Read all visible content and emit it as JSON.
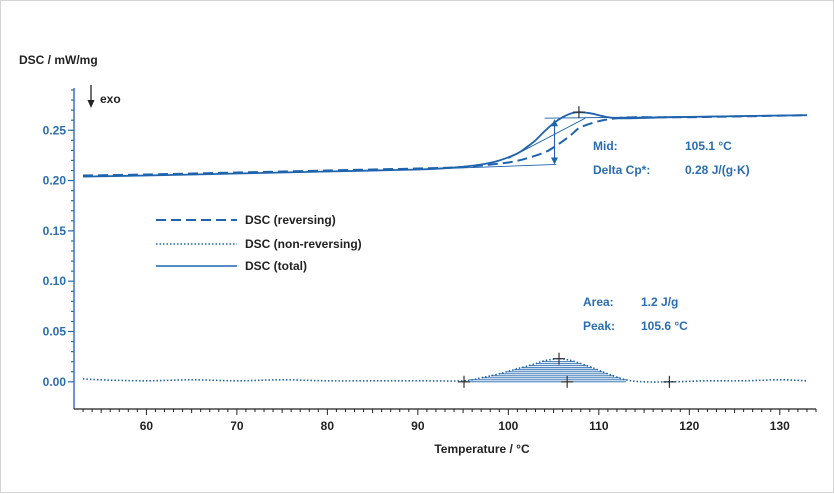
{
  "chart_data": {
    "type": "line",
    "ylabel": "DSC / mW/mg",
    "xlabel": "Temperature / °C",
    "exo_label": "exo",
    "xlim": [
      52,
      134
    ],
    "ylim": [
      -0.027,
      0.292
    ],
    "x_ticks": [
      60,
      70,
      80,
      90,
      100,
      110,
      120,
      130
    ],
    "y_ticks": [
      0.0,
      0.05,
      0.1,
      0.15,
      0.2,
      0.25
    ],
    "y_tick_labels": [
      "0.00",
      "0.05",
      "0.10",
      "0.15",
      "0.20",
      "0.25"
    ],
    "x_tick_labels": [
      "60",
      "70",
      "80",
      "90",
      "100",
      "110",
      "120",
      "130"
    ],
    "series": [
      {
        "name": "DSC (reversing)",
        "style": "dashed",
        "x": [
          53,
          60,
          70,
          80,
          90,
          94,
          97,
          100,
          102,
          104,
          105,
          106,
          107,
          108,
          110,
          112,
          114,
          120,
          133
        ],
        "y": [
          0.205,
          0.206,
          0.208,
          0.21,
          0.212,
          0.213,
          0.215,
          0.218,
          0.222,
          0.228,
          0.233,
          0.239,
          0.246,
          0.253,
          0.259,
          0.262,
          0.263,
          0.263,
          0.265
        ]
      },
      {
        "name": "DSC (non-reversing)",
        "style": "dotted",
        "x": [
          53,
          55,
          60,
          65,
          70,
          75,
          80,
          85,
          90,
          95,
          97,
          99,
          101,
          103,
          104,
          105.6,
          107,
          109,
          111,
          113,
          115,
          118,
          122,
          126,
          130,
          133
        ],
        "y": [
          0.003,
          0.002,
          0.001,
          0.002,
          0.001,
          0.002,
          0.001,
          0.001,
          0.001,
          0.001,
          0.004,
          0.008,
          0.013,
          0.018,
          0.021,
          0.023,
          0.021,
          0.015,
          0.008,
          0.002,
          0.0,
          0.0,
          0.001,
          0.001,
          0.002,
          0.001
        ]
      },
      {
        "name": "DSC (total)",
        "style": "solid",
        "x": [
          53,
          60,
          70,
          80,
          90,
          94,
          97,
          99,
          101,
          102,
          103,
          104,
          105,
          106,
          107,
          107.8,
          109,
          110,
          111,
          112,
          114,
          118,
          125,
          133
        ],
        "y": [
          0.204,
          0.205,
          0.207,
          0.209,
          0.211,
          0.213,
          0.216,
          0.22,
          0.227,
          0.233,
          0.24,
          0.249,
          0.257,
          0.263,
          0.267,
          0.268,
          0.267,
          0.265,
          0.263,
          0.262,
          0.262,
          0.263,
          0.264,
          0.265
        ]
      }
    ],
    "tangents": [
      {
        "x": [
          90,
          105.3
        ],
        "y": [
          0.211,
          0.216
        ]
      },
      {
        "x": [
          100,
          108.5
        ],
        "y": [
          0.222,
          0.262
        ]
      },
      {
        "x": [
          104,
          133
        ],
        "y": [
          0.262,
          0.265
        ]
      }
    ],
    "step_arrow": {
      "x": 105.1,
      "y_low": 0.216,
      "y_high": 0.261
    },
    "markers": [
      {
        "x": 107.8,
        "y": 0.268
      },
      {
        "x": 105.6,
        "y": 0.023
      },
      {
        "x": 95.1,
        "y": 0.0
      },
      {
        "x": 106.5,
        "y": 0.0
      },
      {
        "x": 117.8,
        "y": 0.0
      }
    ],
    "hatched_peak": {
      "x_start": 95.1,
      "x_end": 113
    },
    "legend": {
      "placement": "center-left",
      "entries": [
        "DSC (reversing)",
        "DSC (non-reversing)",
        "DSC (total)"
      ]
    },
    "annotations": {
      "glass_transition": {
        "mid_label": "Mid:",
        "mid_value": "105.1 °C",
        "cp_label": "Delta Cp*:",
        "cp_value": "0.28 J/(g·K)"
      },
      "peak": {
        "area_label": "Area:",
        "area_value": "1.2 J/g",
        "peak_label": "Peak:",
        "peak_value": "105.6 °C"
      }
    },
    "colors": {
      "curve": "#1f63ad",
      "tick": "#2a6db0",
      "marker": "#333333",
      "axis_text": "#222222"
    }
  }
}
